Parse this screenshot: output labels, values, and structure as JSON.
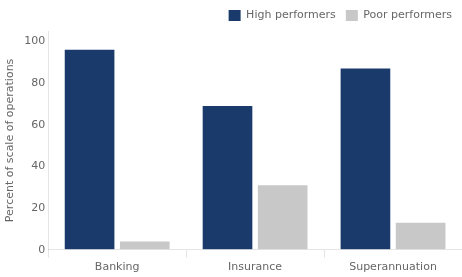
{
  "chart_data": {
    "type": "bar",
    "categories": [
      "Banking",
      "Insurance",
      "Superannuation"
    ],
    "series": [
      {
        "name": "High performers",
        "color": "#1a3a6b",
        "values": [
          96,
          69,
          87
        ]
      },
      {
        "name": "Poor performers",
        "color": "#c8c8c8",
        "values": [
          4,
          31,
          13
        ]
      }
    ],
    "ylabel": "Percent of scale of operations",
    "ylim": [
      0,
      105
    ],
    "yticks": [
      0,
      20,
      40,
      60,
      80,
      100
    ],
    "grid": false,
    "legend": "upper right"
  }
}
